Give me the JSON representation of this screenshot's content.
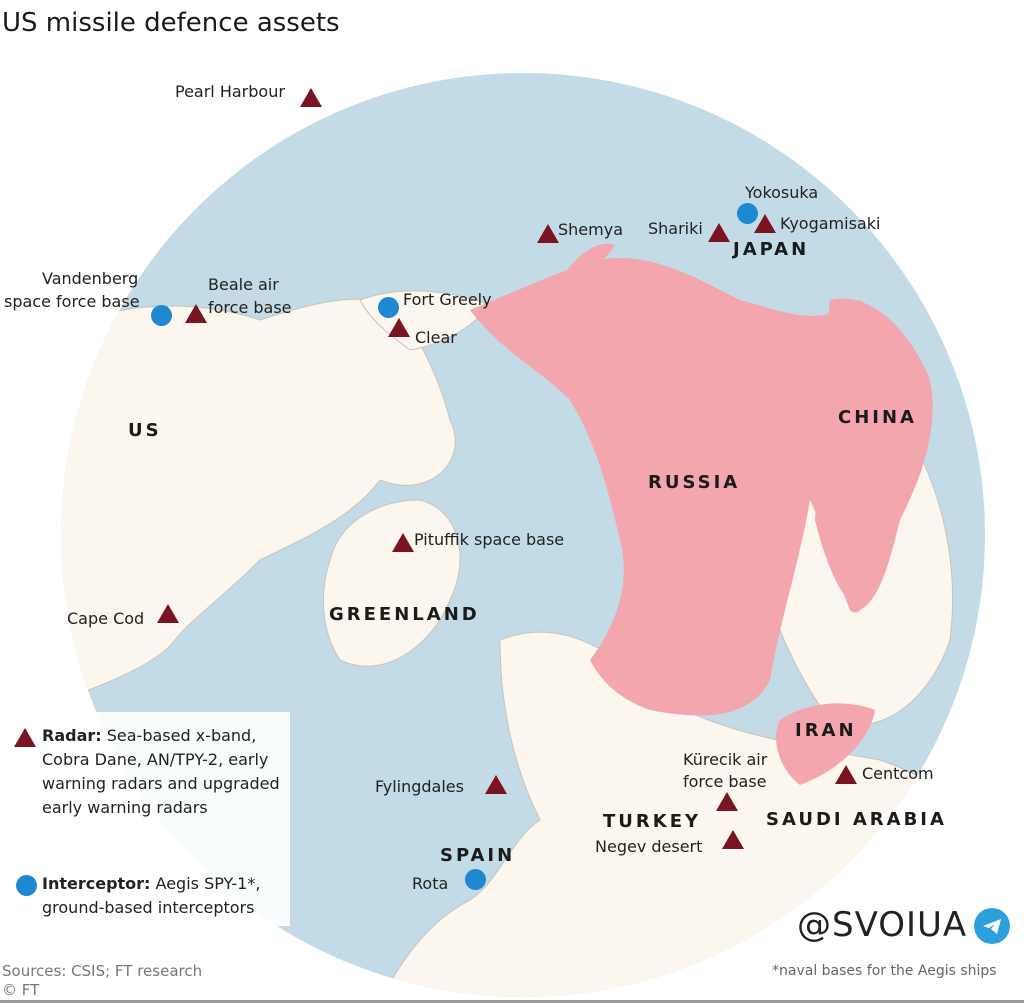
{
  "title": "US missile defence assets",
  "colors": {
    "ocean": "#c3dbe6",
    "land": "#fbf6ee",
    "highlight": "#f4a6ae",
    "radar": "#7a1420",
    "interceptor": "#1e88d0"
  },
  "countries": {
    "us": "US",
    "greenland": "GREENLAND",
    "russia": "RUSSIA",
    "china": "CHINA",
    "japan": "JAPAN",
    "iran": "IRAN",
    "turkey": "TURKEY",
    "saudi": "SAUDI ARABIA",
    "spain": "SPAIN"
  },
  "sites": {
    "pearl": {
      "label": "Pearl Harbour",
      "type": "radar"
    },
    "yokosuka": {
      "label": "Yokosuka",
      "type": "interceptor"
    },
    "kyogamisaki": {
      "label": "Kyogamisaki",
      "type": "radar"
    },
    "shariki": {
      "label": "Shariki",
      "type": "radar"
    },
    "shemya": {
      "label": "Shemya",
      "type": "radar"
    },
    "vandenberg": {
      "label1": "Vandenberg",
      "label2": "space force base",
      "type": "interceptor"
    },
    "beale": {
      "label1": "Beale air",
      "label2": "force base",
      "type": "radar"
    },
    "greely": {
      "label": "Fort Greely",
      "type": "interceptor"
    },
    "clear": {
      "label": "Clear",
      "type": "radar"
    },
    "pituffik": {
      "label": "Pituffik space base",
      "type": "radar"
    },
    "capecod": {
      "label": "Cape Cod",
      "type": "radar"
    },
    "centcom": {
      "label": "Centcom",
      "type": "radar"
    },
    "kurecik": {
      "label1": "Kürecik air",
      "label2": "force base",
      "type": "radar"
    },
    "fylingdales": {
      "label": "Fylingdales",
      "type": "radar"
    },
    "negev": {
      "label": "Negev desert",
      "type": "radar"
    },
    "rota": {
      "label": "Rota",
      "type": "interceptor"
    }
  },
  "legend": {
    "radar_title": "Radar:",
    "radar_text": "Sea-based x-band, Cobra Dane, AN/TPY-2, early warning radars and upgraded early warning radars",
    "interceptor_title": "Interceptor:",
    "interceptor_text": "Aegis SPY-1*, ground-based interceptors"
  },
  "footer": {
    "sources": "Sources: CSIS; FT research",
    "copyright": "© FT",
    "handle": "@SVOIUA",
    "note": "*naval bases for the Aegis ships"
  }
}
